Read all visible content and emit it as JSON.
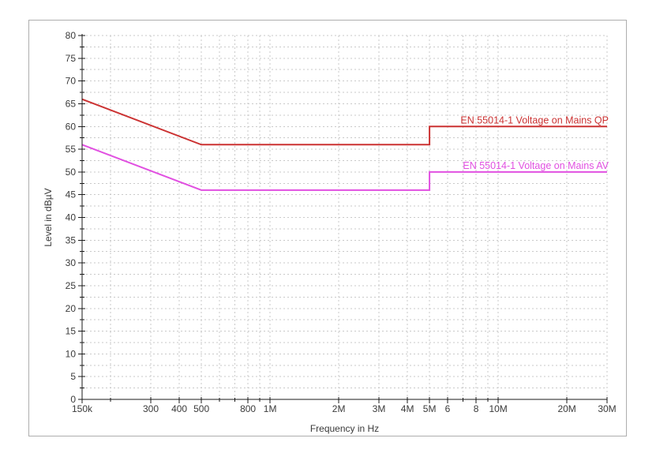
{
  "chart_data": {
    "type": "line",
    "title": "",
    "xlabel": "Frequency in Hz",
    "ylabel": "Level in dBµV",
    "x_scale": "log",
    "x_range": [
      150000,
      30000000
    ],
    "y_range": [
      0,
      80
    ],
    "y_major_step": 5,
    "y_minor_step": 2.5,
    "grid": {
      "show": true,
      "style": "dotted",
      "color": "#c9c9c9"
    },
    "axis_color": "#1a1a1a",
    "text_color": "#3a3a3a",
    "y_tick_labels": [
      "0",
      "5",
      "10",
      "15",
      "20",
      "25",
      "30",
      "35",
      "40",
      "45",
      "50",
      "55",
      "60",
      "65",
      "70",
      "75",
      "80"
    ],
    "x_ticks": [
      {
        "value": 150000,
        "label": "150k"
      },
      {
        "value": 300000,
        "label": "300"
      },
      {
        "value": 400000,
        "label": "400"
      },
      {
        "value": 500000,
        "label": "500"
      },
      {
        "value": 800000,
        "label": "800"
      },
      {
        "value": 1000000,
        "label": "1M"
      },
      {
        "value": 2000000,
        "label": "2M"
      },
      {
        "value": 3000000,
        "label": "3M"
      },
      {
        "value": 4000000,
        "label": "4M"
      },
      {
        "value": 5000000,
        "label": "5M"
      },
      {
        "value": 6000000,
        "label": "6"
      },
      {
        "value": 8000000,
        "label": "8"
      },
      {
        "value": 10000000,
        "label": "10M"
      },
      {
        "value": 20000000,
        "label": "20M"
      },
      {
        "value": 30000000,
        "label": "30M"
      }
    ],
    "x_minor_ticks": [
      200000,
      600000,
      700000,
      900000,
      7000000,
      9000000
    ],
    "series": [
      {
        "name": "EN 55014-1 Voltage on Mains QP",
        "color": "#cb3232",
        "label_anchor_level": 60,
        "points": [
          [
            150000,
            66
          ],
          [
            500000,
            56
          ],
          [
            5000000,
            56
          ],
          [
            5000000,
            60
          ],
          [
            30000000,
            60
          ]
        ]
      },
      {
        "name": "EN 55014-1 Voltage on Mains AV",
        "color": "#e150e1",
        "label_anchor_level": 50,
        "points": [
          [
            150000,
            56
          ],
          [
            500000,
            46
          ],
          [
            5000000,
            46
          ],
          [
            5000000,
            50
          ],
          [
            30000000,
            50
          ]
        ]
      }
    ]
  }
}
